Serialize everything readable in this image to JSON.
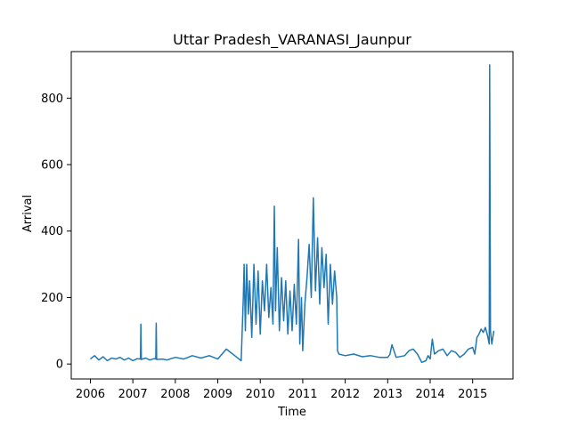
{
  "chart_data": {
    "type": "line",
    "title": "Uttar Pradesh_VARANASI_Jaunpur",
    "xlabel": "Time",
    "ylabel": "Arrival",
    "xlim": [
      2005.55,
      2015.95
    ],
    "ylim": [
      -45,
      940
    ],
    "x_ticks": [
      2006,
      2007,
      2008,
      2009,
      2010,
      2011,
      2012,
      2013,
      2014,
      2015
    ],
    "y_ticks": [
      0,
      200,
      400,
      600,
      800
    ],
    "grid": false,
    "legend": "none",
    "series_color": "#1f77b4",
    "series": [
      {
        "x": [
          2006.0,
          2006.1,
          2006.2,
          2006.3,
          2006.4,
          2006.5,
          2006.6,
          2006.7,
          2006.8,
          2006.9,
          2007.0,
          2007.1,
          2007.18,
          2007.19,
          2007.2,
          2007.3,
          2007.4,
          2007.5,
          2007.54,
          2007.55,
          2007.56,
          2007.7,
          2007.8,
          2008.0,
          2008.2,
          2008.4,
          2008.6,
          2008.8,
          2009.0,
          2009.2,
          2009.4,
          2009.55,
          2009.6,
          2009.62,
          2009.65,
          2009.68,
          2009.72,
          2009.75,
          2009.8,
          2009.85,
          2009.9,
          2009.95,
          2010.0,
          2010.05,
          2010.1,
          2010.15,
          2010.2,
          2010.25,
          2010.3,
          2010.33,
          2010.36,
          2010.4,
          2010.45,
          2010.5,
          2010.55,
          2010.6,
          2010.65,
          2010.7,
          2010.75,
          2010.8,
          2010.85,
          2010.9,
          2010.93,
          2010.97,
          2011.0,
          2011.05,
          2011.1,
          2011.15,
          2011.2,
          2011.25,
          2011.3,
          2011.35,
          2011.4,
          2011.45,
          2011.5,
          2011.55,
          2011.6,
          2011.65,
          2011.7,
          2011.75,
          2011.8,
          2011.82,
          2011.85,
          2012.0,
          2012.2,
          2012.4,
          2012.6,
          2012.8,
          2013.0,
          2013.05,
          2013.1,
          2013.2,
          2013.4,
          2013.5,
          2013.6,
          2013.7,
          2013.8,
          2013.9,
          2013.95,
          2014.0,
          2014.05,
          2014.1,
          2014.2,
          2014.3,
          2014.4,
          2014.5,
          2014.6,
          2014.7,
          2014.8,
          2014.9,
          2015.0,
          2015.05,
          2015.1,
          2015.15,
          2015.2,
          2015.25,
          2015.3,
          2015.35,
          2015.39,
          2015.4,
          2015.42,
          2015.45,
          2015.5
        ],
        "y": [
          15,
          25,
          12,
          22,
          10,
          18,
          15,
          20,
          12,
          18,
          10,
          16,
          15,
          120,
          14,
          18,
          12,
          16,
          15,
          123,
          14,
          15,
          12,
          20,
          15,
          25,
          18,
          25,
          15,
          45,
          25,
          10,
          200,
          300,
          100,
          300,
          150,
          250,
          80,
          300,
          120,
          280,
          90,
          250,
          160,
          300,
          140,
          230,
          120,
          475,
          160,
          350,
          100,
          260,
          130,
          250,
          90,
          220,
          100,
          240,
          120,
          375,
          60,
          200,
          40,
          180,
          260,
          360,
          200,
          500,
          220,
          380,
          180,
          350,
          230,
          330,
          120,
          300,
          180,
          280,
          200,
          40,
          30,
          25,
          30,
          22,
          25,
          20,
          20,
          28,
          58,
          20,
          25,
          40,
          45,
          30,
          5,
          10,
          25,
          15,
          75,
          30,
          40,
          45,
          25,
          40,
          35,
          20,
          30,
          45,
          50,
          30,
          80,
          90,
          105,
          95,
          110,
          85,
          60,
          900,
          100,
          60,
          100
        ]
      }
    ]
  }
}
